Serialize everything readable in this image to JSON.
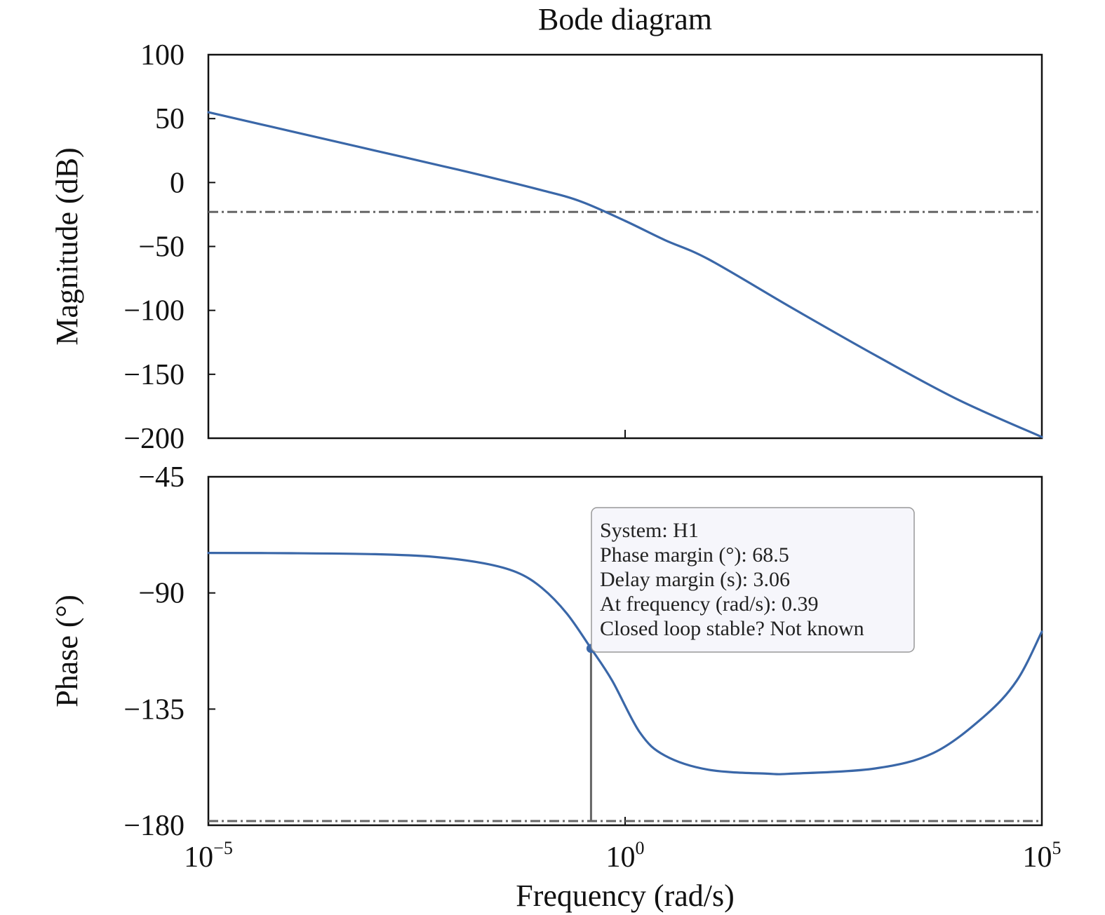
{
  "chart_data": [
    {
      "type": "line",
      "panel": "magnitude",
      "title": "Bode diagram",
      "xlabel": "",
      "ylabel": "Magnitude (dB)",
      "xscale": "log",
      "xlim": [
        1e-05,
        100000
      ],
      "ylim": [
        -200,
        100
      ],
      "yticks": [
        100,
        50,
        0,
        -50,
        -100,
        -150,
        -200
      ],
      "ytick_labels": [
        "100",
        "50",
        "0",
        "−50",
        "−100",
        "−150",
        "−200"
      ],
      "grid": false,
      "series": [
        {
          "x": [
            1e-05,
            0.0001,
            0.001,
            0.01,
            0.1,
            0.3,
            1,
            3,
            10,
            100,
            1000,
            10000,
            100000
          ],
          "values": [
            55,
            40,
            25,
            10,
            -6,
            -15,
            -30,
            -45,
            -60,
            -98,
            -135,
            -170,
            -199
          ],
          "color": "#3a67a8"
        }
      ],
      "reference_lines": [
        {
          "orientation": "horizontal",
          "y": -23,
          "style": "dash-dot",
          "color": "#666666"
        }
      ]
    },
    {
      "type": "line",
      "panel": "phase",
      "xlabel": "Frequency (rad/s)",
      "ylabel": "Phase (°)",
      "xscale": "log",
      "xlim": [
        1e-05,
        100000
      ],
      "ylim": [
        -180,
        -45
      ],
      "yticks": [
        -45,
        -90,
        -135,
        -180
      ],
      "ytick_labels": [
        "−45",
        "−90",
        "−135",
        "−180"
      ],
      "xtick_labels": [
        {
          "base": "10",
          "exp": "−5"
        },
        {
          "base": "10",
          "exp": "0"
        },
        {
          "base": "10",
          "exp": "5"
        }
      ],
      "grid": false,
      "series": [
        {
          "x": [
            1e-05,
            0.0001,
            0.001,
            0.005,
            0.02,
            0.05,
            0.1,
            0.2,
            0.39,
            0.7,
            1.5,
            3,
            10,
            50,
            100,
            1000,
            5000,
            20000,
            50000,
            100000
          ],
          "values": [
            -74.5,
            -74.6,
            -75,
            -76,
            -78.5,
            -82,
            -88,
            -98,
            -111.5,
            -124,
            -144,
            -153,
            -158.5,
            -160,
            -160,
            -158,
            -152,
            -138,
            -124,
            -105
          ],
          "color": "#3a67a8"
        }
      ],
      "reference_lines": [
        {
          "orientation": "horizontal",
          "y": -180,
          "style": "dash-dot",
          "color": "#666666"
        }
      ],
      "marker": {
        "x": 0.39,
        "y": -111.5
      },
      "annotation": [
        "System: H1",
        "Phase margin (°): 68.5",
        "Delay margin (s): 3.06",
        "At frequency (rad/s): 0.39",
        "Closed loop stable? Not known"
      ]
    }
  ]
}
